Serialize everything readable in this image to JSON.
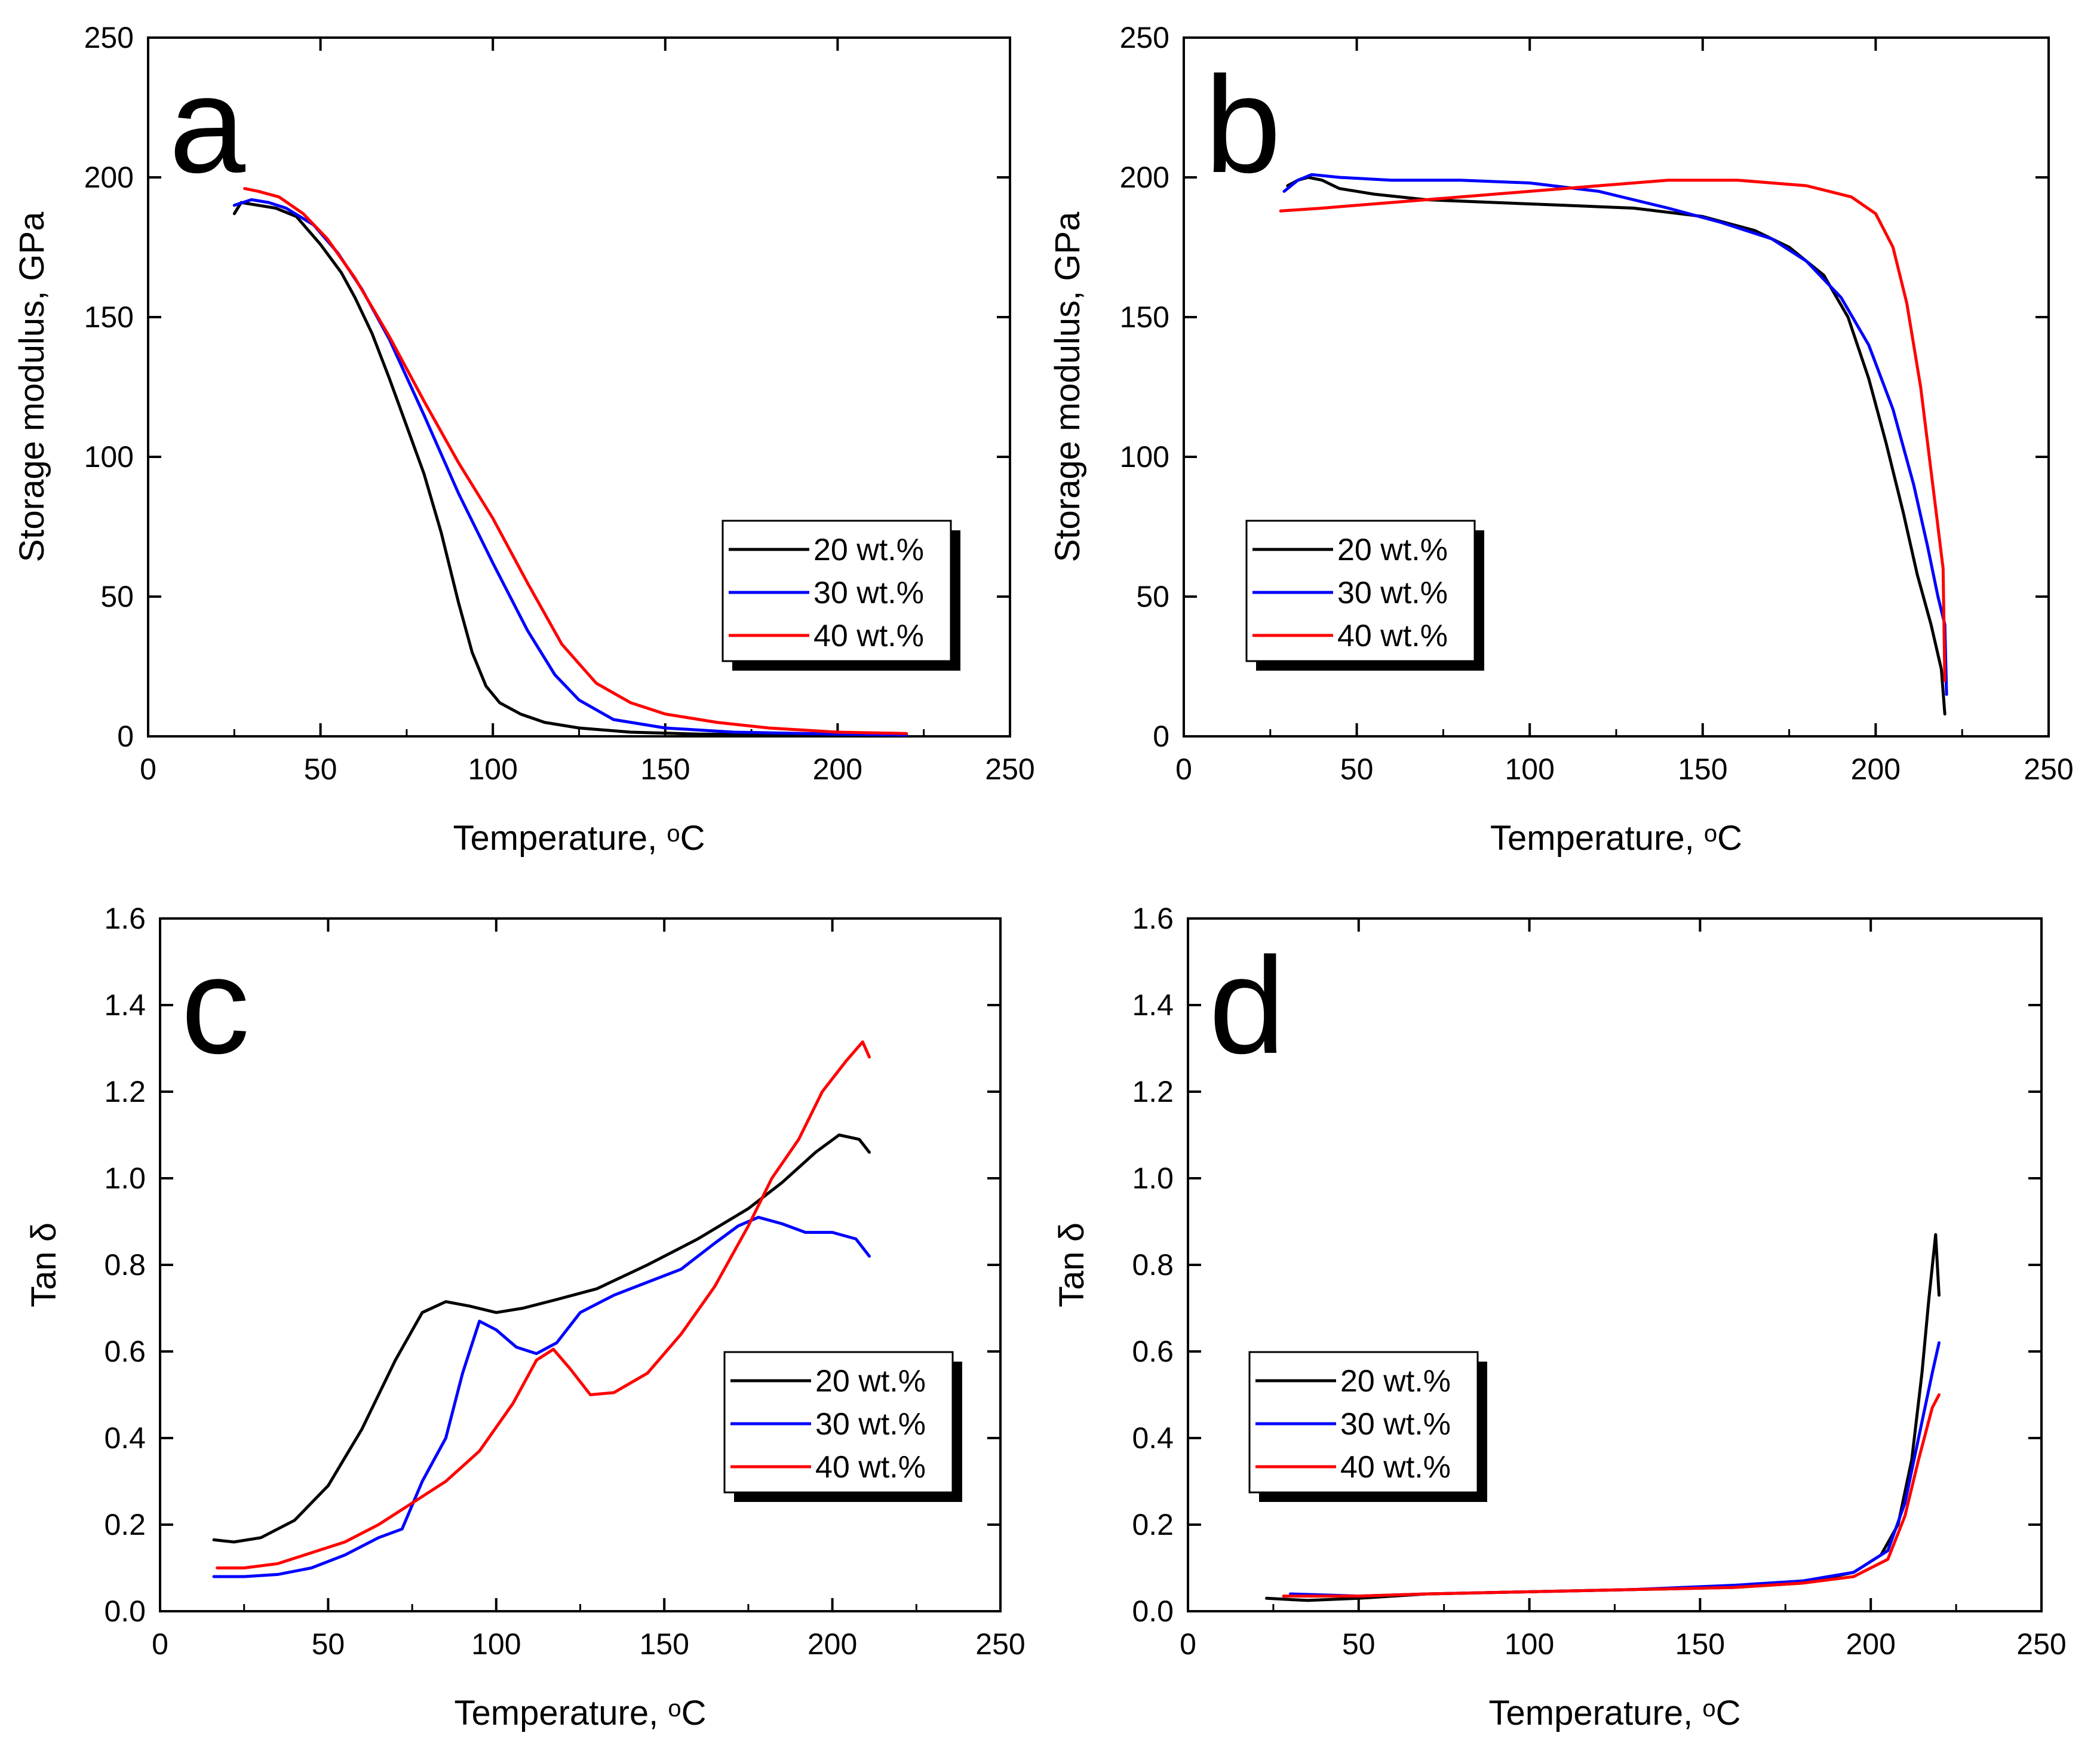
{
  "colors": {
    "black": "#000000",
    "blue": "#0000ff",
    "red": "#ff0000"
  },
  "chart_data": [
    {
      "type": "line",
      "panel_label": "a",
      "xlabel": "Temperature, ",
      "xlabel_unit": "oC",
      "ylabel": "Storage modulus, GPa",
      "xlim": [
        0,
        250
      ],
      "ylim": [
        0,
        250
      ],
      "xticks": [
        "0",
        "50",
        "100",
        "150",
        "200",
        "250"
      ],
      "yticks": [
        "0",
        "50",
        "100",
        "150",
        "200",
        "250"
      ],
      "legend_position": "right",
      "series": [
        {
          "name": "20 wt.%",
          "color": "black",
          "points": [
            [
              25,
              187
            ],
            [
              27,
              191
            ],
            [
              32,
              190
            ],
            [
              37,
              189
            ],
            [
              43,
              186
            ],
            [
              50,
              176
            ],
            [
              56,
              166
            ],
            [
              60,
              157
            ],
            [
              65,
              144
            ],
            [
              70,
              128
            ],
            [
              75,
              111
            ],
            [
              80,
              94
            ],
            [
              85,
              73
            ],
            [
              90,
              48
            ],
            [
              94,
              30
            ],
            [
              98,
              18
            ],
            [
              102,
              12
            ],
            [
              108,
              8
            ],
            [
              115,
              5
            ],
            [
              125,
              3
            ],
            [
              140,
              1.5
            ],
            [
              160,
              0.8
            ],
            [
              200,
              0.4
            ],
            [
              220,
              0.3
            ]
          ]
        },
        {
          "name": "30 wt.%",
          "color": "blue",
          "points": [
            [
              25,
              190
            ],
            [
              30,
              192
            ],
            [
              35,
              191
            ],
            [
              40,
              189
            ],
            [
              48,
              183
            ],
            [
              55,
              173
            ],
            [
              62,
              160
            ],
            [
              70,
              142
            ],
            [
              80,
              115
            ],
            [
              90,
              87
            ],
            [
              100,
              62
            ],
            [
              110,
              38
            ],
            [
              118,
              22
            ],
            [
              125,
              13
            ],
            [
              135,
              6
            ],
            [
              150,
              3
            ],
            [
              170,
              1.5
            ],
            [
              200,
              0.8
            ],
            [
              220,
              0.5
            ]
          ]
        },
        {
          "name": "40 wt.%",
          "color": "red",
          "points": [
            [
              28,
              196
            ],
            [
              32,
              195
            ],
            [
              38,
              193
            ],
            [
              45,
              187
            ],
            [
              52,
              178
            ],
            [
              60,
              164
            ],
            [
              70,
              143
            ],
            [
              80,
              120
            ],
            [
              90,
              98
            ],
            [
              100,
              78
            ],
            [
              110,
              55
            ],
            [
              120,
              33
            ],
            [
              130,
              19
            ],
            [
              140,
              12
            ],
            [
              150,
              8
            ],
            [
              165,
              5
            ],
            [
              180,
              3
            ],
            [
              200,
              1.5
            ],
            [
              220,
              1
            ]
          ]
        }
      ]
    },
    {
      "type": "line",
      "panel_label": "b",
      "xlabel": "Temperature, ",
      "xlabel_unit": "oC",
      "ylabel": "Storage modulus, GPa",
      "xlim": [
        0,
        250
      ],
      "ylim": [
        0,
        250
      ],
      "xticks": [
        "0",
        "50",
        "100",
        "150",
        "200",
        "250"
      ],
      "yticks": [
        "0",
        "50",
        "100",
        "150",
        "200",
        "250"
      ],
      "legend_position": "left",
      "series": [
        {
          "name": "20 wt.%",
          "color": "black",
          "points": [
            [
              30,
              197
            ],
            [
              33,
              199
            ],
            [
              36,
              200
            ],
            [
              40,
              199
            ],
            [
              45,
              196
            ],
            [
              55,
              194
            ],
            [
              70,
              192
            ],
            [
              90,
              191
            ],
            [
              110,
              190
            ],
            [
              130,
              189
            ],
            [
              150,
              186
            ],
            [
              165,
              181
            ],
            [
              175,
              175
            ],
            [
              185,
              165
            ],
            [
              192,
              150
            ],
            [
              198,
              128
            ],
            [
              203,
              105
            ],
            [
              208,
              80
            ],
            [
              212,
              58
            ],
            [
              216,
              40
            ],
            [
              219,
              24
            ],
            [
              220,
              8
            ]
          ]
        },
        {
          "name": "30 wt.%",
          "color": "blue",
          "points": [
            [
              29,
              195
            ],
            [
              33,
              199
            ],
            [
              37,
              201
            ],
            [
              45,
              200
            ],
            [
              60,
              199
            ],
            [
              80,
              199
            ],
            [
              100,
              198
            ],
            [
              120,
              195
            ],
            [
              140,
              189
            ],
            [
              155,
              184
            ],
            [
              170,
              178
            ],
            [
              180,
              170
            ],
            [
              190,
              157
            ],
            [
              198,
              140
            ],
            [
              205,
              117
            ],
            [
              211,
              90
            ],
            [
              215,
              68
            ],
            [
              218,
              50
            ],
            [
              220,
              40
            ],
            [
              220.5,
              15
            ]
          ]
        },
        {
          "name": "40 wt.%",
          "color": "red",
          "points": [
            [
              28,
              188
            ],
            [
              40,
              189
            ],
            [
              60,
              191
            ],
            [
              80,
              193
            ],
            [
              100,
              195
            ],
            [
              120,
              197
            ],
            [
              140,
              199
            ],
            [
              160,
              199
            ],
            [
              180,
              197
            ],
            [
              193,
              193
            ],
            [
              200,
              187
            ],
            [
              205,
              175
            ],
            [
              209,
              155
            ],
            [
              213,
              125
            ],
            [
              216,
              95
            ],
            [
              218,
              75
            ],
            [
              219.5,
              60
            ],
            [
              220,
              20
            ]
          ]
        }
      ]
    },
    {
      "type": "line",
      "panel_label": "c",
      "xlabel": "Temperature, ",
      "xlabel_unit": "oC",
      "ylabel": "Tan δ",
      "xlim": [
        0,
        250
      ],
      "ylim": [
        0,
        1.6
      ],
      "xticks": [
        "0",
        "50",
        "100",
        "150",
        "200",
        "250"
      ],
      "yticks": [
        "0.0",
        "0.2",
        "0.4",
        "0.6",
        "0.8",
        "1.0",
        "1.2",
        "1.4",
        "1.6"
      ],
      "legend_position": "right",
      "series": [
        {
          "name": "20 wt.%",
          "color": "black",
          "points": [
            [
              16,
              0.165
            ],
            [
              22,
              0.16
            ],
            [
              30,
              0.17
            ],
            [
              40,
              0.21
            ],
            [
              50,
              0.29
            ],
            [
              60,
              0.42
            ],
            [
              70,
              0.58
            ],
            [
              78,
              0.69
            ],
            [
              85,
              0.715
            ],
            [
              92,
              0.705
            ],
            [
              100,
              0.69
            ],
            [
              108,
              0.7
            ],
            [
              118,
              0.72
            ],
            [
              130,
              0.745
            ],
            [
              145,
              0.8
            ],
            [
              160,
              0.86
            ],
            [
              175,
              0.93
            ],
            [
              185,
              0.99
            ],
            [
              195,
              1.06
            ],
            [
              202,
              1.1
            ],
            [
              208,
              1.09
            ],
            [
              211,
              1.06
            ]
          ]
        },
        {
          "name": "30 wt.%",
          "color": "blue",
          "points": [
            [
              16,
              0.08
            ],
            [
              25,
              0.08
            ],
            [
              35,
              0.085
            ],
            [
              45,
              0.1
            ],
            [
              55,
              0.13
            ],
            [
              65,
              0.17
            ],
            [
              72,
              0.19
            ],
            [
              78,
              0.3
            ],
            [
              85,
              0.4
            ],
            [
              90,
              0.55
            ],
            [
              95,
              0.67
            ],
            [
              100,
              0.65
            ],
            [
              106,
              0.61
            ],
            [
              112,
              0.595
            ],
            [
              118,
              0.62
            ],
            [
              125,
              0.69
            ],
            [
              135,
              0.73
            ],
            [
              145,
              0.76
            ],
            [
              155,
              0.79
            ],
            [
              165,
              0.85
            ],
            [
              172,
              0.89
            ],
            [
              178,
              0.91
            ],
            [
              185,
              0.895
            ],
            [
              192,
              0.875
            ],
            [
              200,
              0.875
            ],
            [
              207,
              0.86
            ],
            [
              211,
              0.82
            ]
          ]
        },
        {
          "name": "40 wt.%",
          "color": "red",
          "points": [
            [
              17,
              0.1
            ],
            [
              25,
              0.1
            ],
            [
              35,
              0.11
            ],
            [
              45,
              0.135
            ],
            [
              55,
              0.16
            ],
            [
              65,
              0.2
            ],
            [
              75,
              0.25
            ],
            [
              85,
              0.3
            ],
            [
              95,
              0.37
            ],
            [
              105,
              0.48
            ],
            [
              112,
              0.58
            ],
            [
              117,
              0.605
            ],
            [
              122,
              0.56
            ],
            [
              128,
              0.5
            ],
            [
              135,
              0.505
            ],
            [
              145,
              0.55
            ],
            [
              155,
              0.64
            ],
            [
              165,
              0.75
            ],
            [
              175,
              0.89
            ],
            [
              182,
              1.0
            ],
            [
              190,
              1.09
            ],
            [
              197,
              1.2
            ],
            [
              204,
              1.27
            ],
            [
              209,
              1.315
            ],
            [
              211,
              1.28
            ]
          ]
        }
      ]
    },
    {
      "type": "line",
      "panel_label": "d",
      "xlabel": "Temperature, ",
      "xlabel_unit": "oC",
      "ylabel": "Tan δ",
      "xlim": [
        0,
        250
      ],
      "ylim": [
        0,
        1.6
      ],
      "xticks": [
        "0",
        "50",
        "100",
        "150",
        "200",
        "250"
      ],
      "yticks": [
        "0.0",
        "0.2",
        "0.4",
        "0.6",
        "0.8",
        "1.0",
        "1.2",
        "1.4",
        "1.6"
      ],
      "legend_position": "left",
      "series": [
        {
          "name": "20 wt.%",
          "color": "black",
          "points": [
            [
              23,
              0.03
            ],
            [
              35,
              0.025
            ],
            [
              50,
              0.03
            ],
            [
              70,
              0.04
            ],
            [
              100,
              0.045
            ],
            [
              130,
              0.05
            ],
            [
              160,
              0.055
            ],
            [
              180,
              0.065
            ],
            [
              195,
              0.09
            ],
            [
              203,
              0.13
            ],
            [
              208,
              0.2
            ],
            [
              212,
              0.35
            ],
            [
              215,
              0.55
            ],
            [
              217,
              0.72
            ],
            [
              219,
              0.87
            ],
            [
              220,
              0.73
            ]
          ]
        },
        {
          "name": "30 wt.%",
          "color": "blue",
          "points": [
            [
              30,
              0.04
            ],
            [
              50,
              0.035
            ],
            [
              70,
              0.04
            ],
            [
              100,
              0.045
            ],
            [
              130,
              0.05
            ],
            [
              160,
              0.06
            ],
            [
              180,
              0.07
            ],
            [
              195,
              0.09
            ],
            [
              205,
              0.14
            ],
            [
              210,
              0.25
            ],
            [
              214,
              0.4
            ],
            [
              218,
              0.55
            ],
            [
              220,
              0.62
            ]
          ]
        },
        {
          "name": "40 wt.%",
          "color": "red",
          "points": [
            [
              28,
              0.035
            ],
            [
              50,
              0.035
            ],
            [
              70,
              0.04
            ],
            [
              100,
              0.045
            ],
            [
              130,
              0.05
            ],
            [
              160,
              0.055
            ],
            [
              180,
              0.065
            ],
            [
              195,
              0.08
            ],
            [
              205,
              0.12
            ],
            [
              210,
              0.22
            ],
            [
              214,
              0.35
            ],
            [
              218,
              0.47
            ],
            [
              220,
              0.5
            ]
          ]
        }
      ]
    }
  ]
}
